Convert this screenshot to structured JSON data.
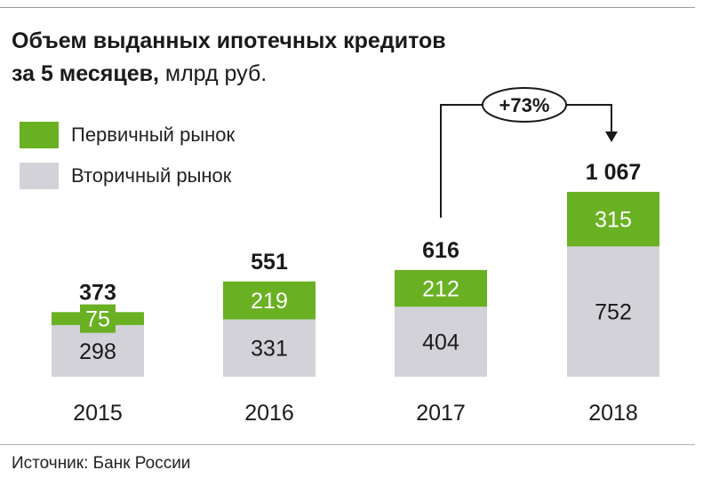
{
  "title": {
    "line1": "Объем выданных ипотечных кредитов",
    "line2_bold": "за 5 месяцев,",
    "line2_normal": " млрд руб."
  },
  "legend": [
    {
      "label": "Первичный рынок",
      "color": "#6ab023"
    },
    {
      "label": "Вторичный рынок",
      "color": "#d3d2d8"
    }
  ],
  "growth_label": "+73%",
  "source": "Источник: Банк России",
  "colors": {
    "primary": "#6ab023",
    "secondary": "#d3d2d8",
    "text": "#1a1a1a",
    "white": "#ffffff"
  },
  "chart_data": {
    "type": "bar",
    "stacked": true,
    "categories": [
      "2015",
      "2016",
      "2017",
      "2018"
    ],
    "series": [
      {
        "name": "Вторичный рынок",
        "values": [
          298,
          331,
          404,
          752
        ]
      },
      {
        "name": "Первичный рынок",
        "values": [
          75,
          219,
          212,
          315
        ]
      }
    ],
    "totals": [
      "373",
      "551",
      "616",
      "1 067"
    ],
    "value_labels": {
      "secondary": [
        "298",
        "331",
        "404",
        "752"
      ],
      "primary": [
        "75",
        "219",
        "212",
        "315"
      ]
    },
    "title": "Объем выданных ипотечных кредитов за 5 месяцев, млрд руб.",
    "annotation": {
      "text": "+73%",
      "from": "2017",
      "to": "2018"
    },
    "ylim": [
      0,
      1100
    ]
  }
}
